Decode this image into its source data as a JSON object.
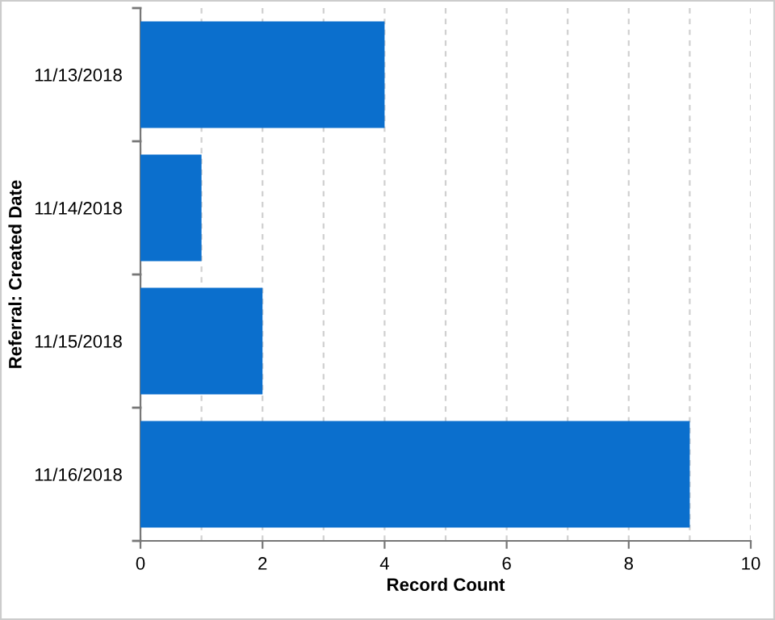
{
  "chart_data": {
    "type": "bar",
    "orientation": "horizontal",
    "ylabel": "Referral: Created Date",
    "xlabel": "Record Count",
    "categories": [
      "11/13/2018",
      "11/14/2018",
      "11/15/2018",
      "11/16/2018"
    ],
    "values": [
      4,
      1,
      2,
      9
    ],
    "color": "#0b6fcd",
    "xlim": [
      0,
      10
    ],
    "xticks": [
      0,
      {
        "value": 1,
        "label": null
      },
      2,
      {
        "value": 3,
        "label": null
      },
      4,
      {
        "value": 5,
        "label": null
      },
      6,
      {
        "value": 7,
        "label": null
      },
      8,
      {
        "value": 9,
        "label": null
      },
      10
    ],
    "grid": "x"
  }
}
